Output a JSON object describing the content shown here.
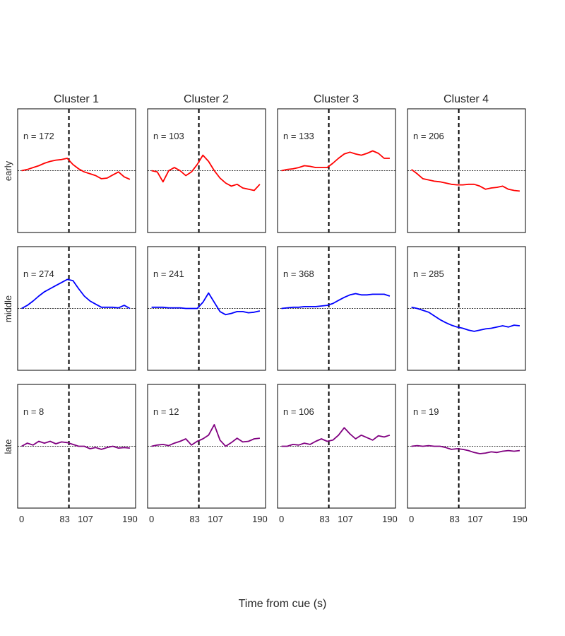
{
  "chart_data": {
    "type": "line",
    "layout": "3x4 small multiples",
    "column_titles": [
      "Cluster 1",
      "Cluster 2",
      "Cluster 3",
      "Cluster 4"
    ],
    "row_labels": [
      "early",
      "middle",
      "late"
    ],
    "row_colors": [
      "#ff0000",
      "#0000ff",
      "#800080"
    ],
    "xlabel": "Time from cue (s)",
    "x_ticks": [
      0,
      83,
      107,
      190
    ],
    "xlim": [
      -7,
      200
    ],
    "ylim": [
      -1,
      1
    ],
    "cue_time": 83,
    "zero_line": 0,
    "grid": false,
    "panels": [
      {
        "row": "early",
        "column": "Cluster 1",
        "n_label": "n = 172",
        "x": [
          0,
          10,
          20,
          30,
          40,
          50,
          60,
          70,
          80,
          90,
          100,
          110,
          120,
          130,
          140,
          150,
          160,
          170,
          180,
          190
        ],
        "y": [
          0.0,
          0.02,
          0.05,
          0.08,
          0.12,
          0.15,
          0.17,
          0.18,
          0.2,
          0.1,
          0.03,
          -0.02,
          -0.05,
          -0.08,
          -0.13,
          -0.12,
          -0.07,
          -0.02,
          -0.1,
          -0.14
        ]
      },
      {
        "row": "early",
        "column": "Cluster 2",
        "n_label": "n = 103",
        "x": [
          0,
          10,
          20,
          30,
          40,
          50,
          60,
          70,
          80,
          90,
          100,
          110,
          120,
          130,
          140,
          150,
          160,
          170,
          180,
          190
        ],
        "y": [
          0.0,
          -0.02,
          -0.18,
          0.0,
          0.05,
          0.0,
          -0.08,
          -0.02,
          0.1,
          0.25,
          0.15,
          0.0,
          -0.12,
          -0.2,
          -0.25,
          -0.22,
          -0.28,
          -0.3,
          -0.32,
          -0.22
        ]
      },
      {
        "row": "early",
        "column": "Cluster 3",
        "n_label": "n = 133",
        "x": [
          0,
          10,
          20,
          30,
          40,
          50,
          60,
          70,
          80,
          90,
          100,
          110,
          120,
          130,
          140,
          150,
          160,
          170,
          180,
          190
        ],
        "y": [
          0.0,
          0.02,
          0.03,
          0.05,
          0.08,
          0.07,
          0.05,
          0.05,
          0.05,
          0.12,
          0.2,
          0.27,
          0.3,
          0.27,
          0.25,
          0.28,
          0.32,
          0.28,
          0.2,
          0.2
        ]
      },
      {
        "row": "early",
        "column": "Cluster 4",
        "n_label": "n = 206",
        "x": [
          0,
          10,
          20,
          30,
          40,
          50,
          60,
          70,
          80,
          90,
          100,
          110,
          120,
          130,
          140,
          150,
          160,
          170,
          180,
          190
        ],
        "y": [
          0.02,
          -0.05,
          -0.13,
          -0.15,
          -0.17,
          -0.18,
          -0.2,
          -0.22,
          -0.23,
          -0.23,
          -0.22,
          -0.22,
          -0.25,
          -0.3,
          -0.28,
          -0.27,
          -0.25,
          -0.3,
          -0.32,
          -0.33
        ]
      },
      {
        "row": "middle",
        "column": "Cluster 1",
        "n_label": "n = 274",
        "x": [
          0,
          10,
          20,
          30,
          40,
          50,
          60,
          70,
          80,
          90,
          100,
          110,
          120,
          130,
          140,
          150,
          160,
          170,
          180,
          190
        ],
        "y": [
          0.0,
          0.05,
          0.12,
          0.2,
          0.27,
          0.32,
          0.37,
          0.42,
          0.47,
          0.45,
          0.32,
          0.2,
          0.12,
          0.07,
          0.02,
          0.02,
          0.02,
          0.01,
          0.05,
          0.0
        ]
      },
      {
        "row": "middle",
        "column": "Cluster 2",
        "n_label": "n = 241",
        "x": [
          0,
          10,
          20,
          30,
          40,
          50,
          60,
          70,
          80,
          90,
          100,
          110,
          120,
          130,
          140,
          150,
          160,
          170,
          180,
          190
        ],
        "y": [
          0.02,
          0.02,
          0.02,
          0.01,
          0.01,
          0.01,
          0.0,
          0.0,
          0.0,
          0.1,
          0.25,
          0.1,
          -0.05,
          -0.1,
          -0.08,
          -0.05,
          -0.05,
          -0.07,
          -0.06,
          -0.04
        ]
      },
      {
        "row": "middle",
        "column": "Cluster 3",
        "n_label": "n = 368",
        "x": [
          0,
          10,
          20,
          30,
          40,
          50,
          60,
          70,
          80,
          90,
          100,
          110,
          120,
          130,
          140,
          150,
          160,
          170,
          180,
          190
        ],
        "y": [
          0.0,
          0.01,
          0.02,
          0.02,
          0.03,
          0.03,
          0.03,
          0.04,
          0.05,
          0.08,
          0.13,
          0.18,
          0.22,
          0.24,
          0.22,
          0.22,
          0.23,
          0.23,
          0.23,
          0.2
        ]
      },
      {
        "row": "middle",
        "column": "Cluster 4",
        "n_label": "n = 285",
        "x": [
          0,
          10,
          20,
          30,
          40,
          50,
          60,
          70,
          80,
          90,
          100,
          110,
          120,
          130,
          140,
          150,
          160,
          170,
          180,
          190
        ],
        "y": [
          0.02,
          0.0,
          -0.03,
          -0.06,
          -0.12,
          -0.18,
          -0.23,
          -0.27,
          -0.3,
          -0.32,
          -0.35,
          -0.37,
          -0.35,
          -0.33,
          -0.32,
          -0.3,
          -0.28,
          -0.3,
          -0.27,
          -0.28
        ]
      },
      {
        "row": "late",
        "column": "Cluster 1",
        "n_label": "n = 8",
        "x": [
          0,
          10,
          20,
          30,
          40,
          50,
          60,
          70,
          80,
          90,
          100,
          110,
          120,
          130,
          140,
          150,
          160,
          170,
          180,
          190
        ],
        "y": [
          0.0,
          0.05,
          0.02,
          0.08,
          0.05,
          0.08,
          0.04,
          0.07,
          0.06,
          0.03,
          0.0,
          0.0,
          -0.04,
          -0.02,
          -0.05,
          -0.02,
          0.0,
          -0.03,
          -0.02,
          -0.03
        ]
      },
      {
        "row": "late",
        "column": "Cluster 2",
        "n_label": "n = 12",
        "x": [
          0,
          10,
          20,
          30,
          40,
          50,
          60,
          70,
          80,
          90,
          100,
          110,
          120,
          130,
          140,
          150,
          160,
          170,
          180,
          190
        ],
        "y": [
          0.0,
          0.02,
          0.03,
          0.01,
          0.05,
          0.08,
          0.12,
          0.02,
          0.08,
          0.12,
          0.18,
          0.35,
          0.1,
          0.0,
          0.06,
          0.13,
          0.07,
          0.08,
          0.12,
          0.13
        ]
      },
      {
        "row": "late",
        "column": "Cluster 3",
        "n_label": "n = 106",
        "x": [
          0,
          10,
          20,
          30,
          40,
          50,
          60,
          70,
          80,
          90,
          100,
          110,
          120,
          130,
          140,
          150,
          160,
          170,
          180,
          190
        ],
        "y": [
          0.0,
          0.0,
          0.03,
          0.02,
          0.05,
          0.03,
          0.08,
          0.12,
          0.08,
          0.1,
          0.18,
          0.3,
          0.2,
          0.12,
          0.18,
          0.14,
          0.1,
          0.17,
          0.15,
          0.18
        ]
      },
      {
        "row": "late",
        "column": "Cluster 4",
        "n_label": "n = 19",
        "x": [
          0,
          10,
          20,
          30,
          40,
          50,
          60,
          70,
          80,
          90,
          100,
          110,
          120,
          130,
          140,
          150,
          160,
          170,
          180,
          190
        ],
        "y": [
          0.0,
          0.01,
          0.0,
          0.01,
          0.0,
          0.0,
          -0.02,
          -0.05,
          -0.04,
          -0.05,
          -0.07,
          -0.1,
          -0.12,
          -0.11,
          -0.09,
          -0.1,
          -0.08,
          -0.07,
          -0.08,
          -0.07
        ]
      }
    ]
  }
}
